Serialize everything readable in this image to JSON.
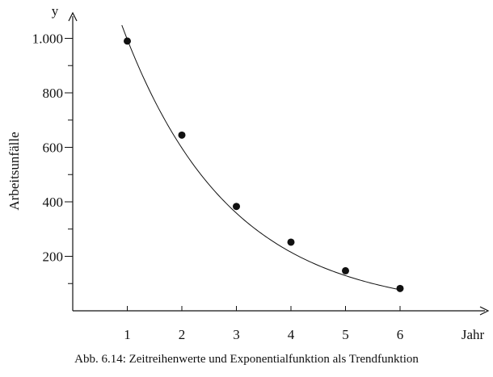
{
  "caption": "Abb. 6.14: Zeitreihenwerte und Exponentialfunktion als Trendfunktion",
  "chart_data": {
    "type": "scatter",
    "title": "",
    "xlabel": "Jahr",
    "ylabel": "Arbeitsunfälle",
    "y_axis_symbol": "y",
    "xlim": [
      0,
      6.75
    ],
    "ylim": [
      0,
      1080
    ],
    "x_ticks": [
      {
        "value": 1,
        "label": "1"
      },
      {
        "value": 2,
        "label": "2"
      },
      {
        "value": 3,
        "label": "3"
      },
      {
        "value": 4,
        "label": "4"
      },
      {
        "value": 5,
        "label": "5"
      },
      {
        "value": 6,
        "label": "6"
      }
    ],
    "y_major_ticks": [
      {
        "value": 200,
        "label": "200"
      },
      {
        "value": 400,
        "label": "400"
      },
      {
        "value": 600,
        "label": "600"
      },
      {
        "value": 800,
        "label": "800"
      },
      {
        "value": 1000,
        "label": "1.000"
      }
    ],
    "y_minor_ticks": [
      100,
      300,
      500,
      700,
      900
    ],
    "grid": false,
    "series": [
      {
        "kind": "points",
        "x": [
          1,
          2,
          3,
          4,
          5,
          6
        ],
        "y": [
          990,
          645,
          383,
          252,
          147,
          82
        ]
      },
      {
        "kind": "trend",
        "x_range": [
          0.9,
          6
        ],
        "a": 1660,
        "b": 0.6
      }
    ],
    "colors": {
      "ink": "#111111"
    }
  }
}
